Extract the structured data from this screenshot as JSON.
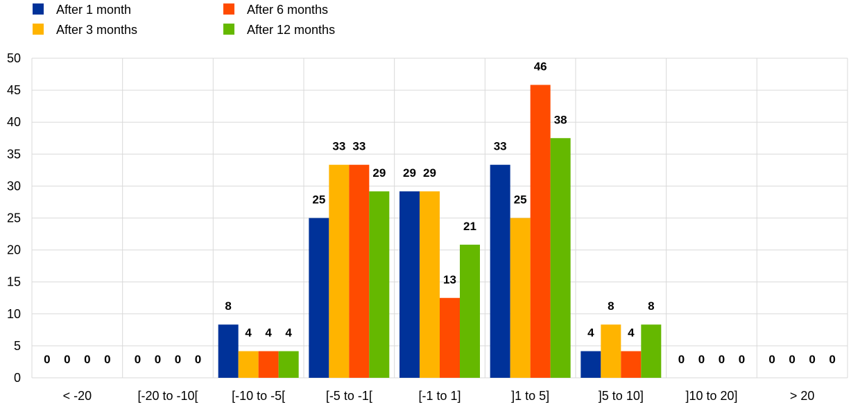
{
  "chart_data": {
    "type": "bar",
    "title": "",
    "xlabel": "",
    "ylabel": "",
    "ylim": [
      0,
      50
    ],
    "yticks": [
      0,
      5,
      10,
      15,
      20,
      25,
      30,
      35,
      40,
      45,
      50
    ],
    "grid": true,
    "legend_position": "top-left",
    "categories": [
      "< -20",
      "[-20 to -10[",
      "[-10 to -5[",
      "[-5 to -1[",
      "[-1 to 1]",
      "]1 to 5]",
      "]5 to 10]",
      "]10 to 20]",
      "> 20"
    ],
    "series": [
      {
        "name": "After 1 month",
        "color": "#003299",
        "values": [
          0,
          0,
          8.33,
          25,
          29.17,
          33.33,
          4.17,
          0,
          0
        ],
        "labels": [
          "0",
          "0",
          "8",
          "25",
          "29",
          "33",
          "4",
          "0",
          "0"
        ]
      },
      {
        "name": "After 3 months",
        "color": "#FFB400",
        "values": [
          0,
          0,
          4.17,
          33.33,
          29.17,
          25,
          8.33,
          0,
          0
        ],
        "labels": [
          "0",
          "0",
          "4",
          "33",
          "29",
          "25",
          "8",
          "0",
          "0"
        ]
      },
      {
        "name": "After 6 months",
        "color": "#FF4B00",
        "values": [
          0,
          0,
          4.17,
          33.33,
          12.5,
          45.83,
          4.17,
          0,
          0
        ],
        "labels": [
          "0",
          "0",
          "4",
          "33",
          "13",
          "46",
          "4",
          "0",
          "0"
        ]
      },
      {
        "name": "After 12 months",
        "color": "#65B800",
        "values": [
          0,
          0,
          4.17,
          29.17,
          20.83,
          37.5,
          8.33,
          0,
          0
        ],
        "labels": [
          "0",
          "0",
          "4",
          "29",
          "21",
          "38",
          "8",
          "0",
          "0"
        ]
      }
    ]
  }
}
